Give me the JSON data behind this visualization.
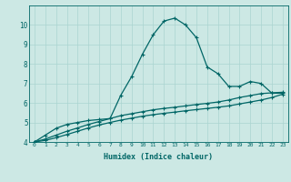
{
  "xlabel": "Humidex (Indice chaleur)",
  "ylabel": "",
  "bg_color": "#cce8e4",
  "grid_color": "#aad4d0",
  "line_color": "#006666",
  "xlim": [
    -0.5,
    23.5
  ],
  "ylim": [
    4,
    11
  ],
  "xticks": [
    0,
    1,
    2,
    3,
    4,
    5,
    6,
    7,
    8,
    9,
    10,
    11,
    12,
    13,
    14,
    15,
    16,
    17,
    18,
    19,
    20,
    21,
    22,
    23
  ],
  "yticks": [
    4,
    5,
    6,
    7,
    8,
    9,
    10
  ],
  "curve1_x": [
    0,
    1,
    2,
    3,
    4,
    5,
    6,
    7,
    8,
    9,
    10,
    11,
    12,
    13,
    14,
    15,
    16,
    17,
    18,
    19,
    20,
    21,
    22,
    23
  ],
  "curve1_y": [
    4.0,
    4.35,
    4.7,
    4.9,
    5.0,
    5.1,
    5.15,
    5.2,
    6.4,
    7.35,
    8.5,
    9.5,
    10.2,
    10.35,
    10.0,
    9.35,
    7.85,
    7.5,
    6.85,
    6.85,
    7.1,
    7.0,
    6.5,
    6.5
  ],
  "curve2_x": [
    0,
    1,
    2,
    3,
    4,
    5,
    6,
    7,
    8,
    9,
    10,
    11,
    12,
    13,
    14,
    15,
    16,
    17,
    18,
    19,
    20,
    21,
    22,
    23
  ],
  "curve2_y": [
    4.0,
    4.15,
    4.35,
    4.55,
    4.72,
    4.9,
    5.05,
    5.2,
    5.35,
    5.45,
    5.55,
    5.65,
    5.72,
    5.78,
    5.85,
    5.92,
    5.98,
    6.05,
    6.15,
    6.28,
    6.38,
    6.48,
    6.52,
    6.55
  ],
  "curve3_x": [
    0,
    1,
    2,
    3,
    4,
    5,
    6,
    7,
    8,
    9,
    10,
    11,
    12,
    13,
    14,
    15,
    16,
    17,
    18,
    19,
    20,
    21,
    22,
    23
  ],
  "curve3_y": [
    4.0,
    4.08,
    4.22,
    4.38,
    4.55,
    4.72,
    4.87,
    5.0,
    5.12,
    5.22,
    5.32,
    5.4,
    5.47,
    5.53,
    5.6,
    5.66,
    5.72,
    5.78,
    5.85,
    5.95,
    6.05,
    6.15,
    6.28,
    6.45
  ]
}
